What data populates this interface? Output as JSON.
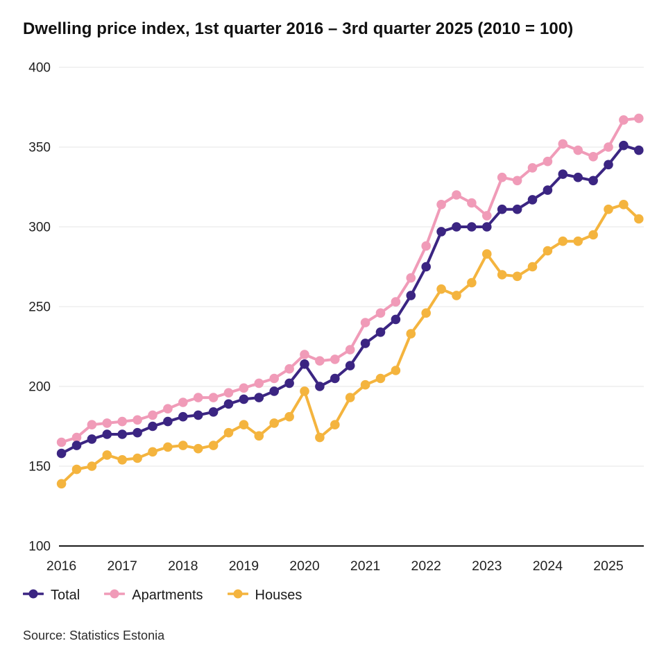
{
  "title": "Dwelling price index, 1st quarter 2016 – 3rd quarter 2025 (2010 = 100)",
  "source": "Source: Statistics Estonia",
  "legend": [
    {
      "label": "Total",
      "color": "#3b2582"
    },
    {
      "label": "Apartments",
      "color": "#f09bb8"
    },
    {
      "label": "Houses",
      "color": "#f4b43e"
    }
  ],
  "colors": {
    "background": "#ffffff",
    "gridline": "#e5e5e5",
    "axis_line": "#1a1a1a",
    "tick_label": "#212121",
    "total": "#3b2582",
    "apartments": "#f09bb8",
    "houses": "#f4b43e"
  },
  "chart_data": {
    "type": "line",
    "title": "Dwelling price index, 1st quarter 2016 – 3rd quarter 2025 (2010 = 100)",
    "categories": [
      "2016 Q1",
      "2016 Q2",
      "2016 Q3",
      "2016 Q4",
      "2017 Q1",
      "2017 Q2",
      "2017 Q3",
      "2017 Q4",
      "2018 Q1",
      "2018 Q2",
      "2018 Q3",
      "2018 Q4",
      "2019 Q1",
      "2019 Q2",
      "2019 Q3",
      "2019 Q4",
      "2020 Q1",
      "2020 Q2",
      "2020 Q3",
      "2020 Q4",
      "2021 Q1",
      "2021 Q2",
      "2021 Q3",
      "2021 Q4",
      "2022 Q1",
      "2022 Q2",
      "2022 Q3",
      "2022 Q4",
      "2023 Q1",
      "2023 Q2",
      "2023 Q3",
      "2023 Q4",
      "2024 Q1",
      "2024 Q2",
      "2024 Q3",
      "2024 Q4",
      "2025 Q1",
      "2025 Q2",
      "2025 Q3"
    ],
    "series": [
      {
        "name": "Total",
        "color": "#3b2582",
        "values": [
          158,
          163,
          167,
          170,
          170,
          171,
          175,
          178,
          181,
          182,
          184,
          189,
          192,
          193,
          197,
          202,
          214,
          200,
          205,
          213,
          227,
          234,
          242,
          257,
          275,
          297,
          300,
          300,
          300,
          311,
          311,
          317,
          323,
          333,
          331,
          329,
          339,
          351,
          348
        ]
      },
      {
        "name": "Apartments",
        "color": "#f09bb8",
        "values": [
          165,
          168,
          176,
          177,
          178,
          179,
          182,
          186,
          190,
          193,
          193,
          196,
          199,
          202,
          205,
          211,
          220,
          216,
          217,
          223,
          240,
          246,
          253,
          268,
          288,
          314,
          320,
          315,
          307,
          331,
          329,
          337,
          341,
          352,
          348,
          344,
          350,
          367,
          368
        ]
      },
      {
        "name": "Houses",
        "color": "#f4b43e",
        "values": [
          139,
          148,
          150,
          157,
          154,
          155,
          159,
          162,
          163,
          161,
          163,
          171,
          176,
          169,
          177,
          181,
          197,
          168,
          176,
          193,
          201,
          205,
          210,
          233,
          246,
          261,
          257,
          265,
          283,
          270,
          269,
          275,
          285,
          291,
          291,
          295,
          311,
          314,
          305
        ]
      }
    ],
    "xlabel": "",
    "ylabel": "",
    "ylim": [
      100,
      400
    ],
    "yticks": [
      100,
      150,
      200,
      250,
      300,
      350,
      400
    ],
    "xtick_labels": [
      "2016",
      "2017",
      "2018",
      "2019",
      "2020",
      "2021",
      "2022",
      "2023",
      "2024",
      "2025"
    ],
    "grid": true,
    "legend_position": "bottom-left"
  }
}
